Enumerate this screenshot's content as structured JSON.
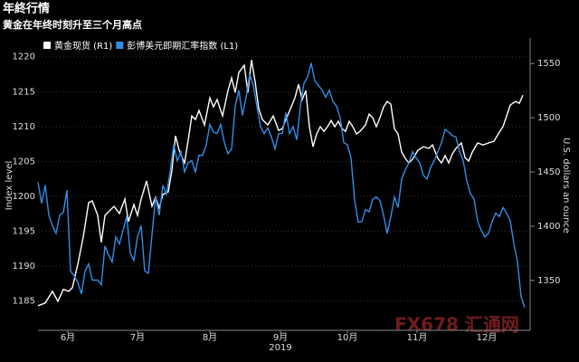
{
  "chart_data": {
    "type": "line",
    "title": "年終行情",
    "subtitle": "黄金在年终时刻升至三个月高点",
    "ylabel": "Index level",
    "y2label": "U.S. dollars an ounce",
    "year_label": "2019",
    "watermark": "FX678 汇通网",
    "xlim": [
      0,
      538
    ],
    "xticks": [
      {
        "value": 33,
        "label": "6月"
      },
      {
        "value": 110,
        "label": "7月"
      },
      {
        "value": 190,
        "label": "8月"
      },
      {
        "value": 268,
        "label": "9月"
      },
      {
        "value": 342,
        "label": "10月"
      },
      {
        "value": 419,
        "label": "11月"
      },
      {
        "value": 496,
        "label": "12月"
      }
    ],
    "ylim": [
      1180.8,
      1222.3
    ],
    "yticks": [
      1185,
      1190,
      1195,
      1200,
      1205,
      1210,
      1215,
      1220
    ],
    "y2lim": [
      1304,
      1571
    ],
    "y2ticks": [
      1350,
      1400,
      1450,
      1500,
      1550
    ],
    "grid": true,
    "legend": "top-left",
    "series": [
      {
        "name": "黄金现货 (R1)",
        "color": "#ffffff",
        "axis": "y2",
        "x": [
          0,
          8,
          16,
          22,
          28,
          34,
          38,
          44,
          50,
          56,
          60,
          66,
          70,
          74,
          78,
          84,
          90,
          96,
          100,
          106,
          110,
          114,
          120,
          126,
          130,
          134,
          138,
          144,
          148,
          152,
          156,
          162,
          166,
          170,
          174,
          178,
          184,
          190,
          194,
          198,
          204,
          210,
          214,
          218,
          222,
          228,
          232,
          236,
          240,
          244,
          248,
          254,
          260,
          266,
          270,
          274,
          280,
          284,
          288,
          292,
          296,
          300,
          304,
          308,
          312,
          316,
          320,
          324,
          328,
          332,
          336,
          340,
          344,
          348,
          352,
          356,
          362,
          366,
          370,
          374,
          378,
          382,
          386,
          390,
          394,
          398,
          402,
          406,
          410,
          414,
          420,
          426,
          432,
          436,
          442,
          446,
          450,
          454,
          458,
          462,
          468,
          472,
          476,
          480,
          486,
          492,
          498,
          504,
          510,
          514,
          518,
          522,
          528,
          532,
          536
        ],
        "values": [
          1326.7,
          1329.2,
          1340,
          1330.8,
          1341.7,
          1340,
          1343.3,
          1365,
          1390,
          1421.7,
          1423.3,
          1410,
          1385,
          1410,
          1413.3,
          1418.3,
          1411.7,
          1425,
          1404.2,
          1420,
          1410,
          1425,
          1441.7,
          1418.3,
          1426.7,
          1416.7,
          1429.2,
          1431.7,
          1451.7,
          1483.3,
          1470,
          1458.3,
          1479.2,
          1501.7,
          1498.3,
          1506.7,
          1493.3,
          1518.3,
          1510,
          1516.7,
          1501.7,
          1525,
          1536.7,
          1523.3,
          1541.7,
          1548.3,
          1523.3,
          1553.3,
          1533.3,
          1508.3,
          1498.3,
          1493.3,
          1501.7,
          1488.3,
          1490,
          1498.3,
          1510,
          1518.3,
          1530.8,
          1516.7,
          1525,
          1491.7,
          1473.3,
          1485,
          1491.7,
          1487.5,
          1491.7,
          1497.5,
          1491.7,
          1496.7,
          1490,
          1487.5,
          1496.7,
          1491.7,
          1485,
          1487.5,
          1493.3,
          1503.3,
          1500,
          1491.7,
          1500,
          1510,
          1515,
          1512.5,
          1490,
          1485,
          1468.3,
          1462.5,
          1458.3,
          1461.7,
          1470,
          1473.3,
          1471.7,
          1475,
          1462.5,
          1458.3,
          1465,
          1458.3,
          1466.7,
          1471.7,
          1476.7,
          1463.3,
          1460,
          1468.3,
          1476.7,
          1475,
          1476.7,
          1478.3,
          1486.7,
          1491.7,
          1501.7,
          1511.7,
          1515,
          1513.3,
          1520.8
        ]
      },
      {
        "name": "彭博美元即期汇率指数 (L1)",
        "color": "#2f8fe8",
        "axis": "y",
        "x": [
          0,
          4,
          8,
          12,
          16,
          20,
          24,
          28,
          32,
          36,
          40,
          44,
          48,
          52,
          56,
          60,
          66,
          70,
          74,
          78,
          82,
          86,
          90,
          94,
          98,
          102,
          106,
          110,
          114,
          118,
          122,
          126,
          130,
          134,
          138,
          142,
          146,
          150,
          154,
          158,
          162,
          166,
          170,
          174,
          178,
          182,
          186,
          190,
          194,
          198,
          202,
          206,
          210,
          214,
          218,
          222,
          226,
          230,
          234,
          238,
          242,
          246,
          250,
          254,
          258,
          262,
          266,
          270,
          274,
          278,
          282,
          286,
          290,
          294,
          298,
          302,
          306,
          310,
          314,
          318,
          322,
          326,
          330,
          334,
          338,
          342,
          346,
          350,
          354,
          358,
          362,
          366,
          370,
          374,
          378,
          382,
          386,
          390,
          394,
          398,
          402,
          406,
          410,
          414,
          418,
          422,
          426,
          430,
          434,
          438,
          442,
          446,
          450,
          454,
          458,
          462,
          466,
          470,
          474,
          478,
          482,
          486,
          490,
          494,
          498,
          502,
          506,
          510,
          514,
          518,
          522,
          526,
          530,
          534,
          538
        ],
        "values": [
          1202.0,
          1199.0,
          1201.6,
          1197.3,
          1195.8,
          1194.7,
          1197.3,
          1197.7,
          1200.9,
          1189.3,
          1188.6,
          1187.7,
          1186.0,
          1189.3,
          1190.3,
          1188.0,
          1188.0,
          1187.3,
          1192.9,
          1191.6,
          1190.6,
          1194.2,
          1193.2,
          1195.1,
          1197.1,
          1191.9,
          1190.8,
          1194.2,
          1195.8,
          1189.3,
          1189.0,
          1194.5,
          1199.9,
          1197.3,
          1201.6,
          1200.3,
          1203.5,
          1207.4,
          1205.1,
          1206.4,
          1203.5,
          1204.8,
          1205.1,
          1203.5,
          1205.9,
          1205.9,
          1207.4,
          1210.3,
          1209.2,
          1209.0,
          1210.3,
          1207.7,
          1206.1,
          1206.8,
          1212.9,
          1215.2,
          1211.6,
          1214.2,
          1217.5,
          1215.9,
          1212.9,
          1210.0,
          1209.0,
          1209.8,
          1208.5,
          1206.8,
          1209.0,
          1209.0,
          1212.0,
          1209.0,
          1210.0,
          1208.1,
          1212.9,
          1216.2,
          1217.1,
          1219.1,
          1216.5,
          1215.9,
          1215.2,
          1214.2,
          1215.2,
          1213.6,
          1212.9,
          1211.3,
          1207.7,
          1207.4,
          1205.5,
          1199.4,
          1196.3,
          1196.4,
          1198.1,
          1197.8,
          1199.6,
          1199.9,
          1199.4,
          1197.3,
          1194.7,
          1197.1,
          1199.9,
          1198.4,
          1202.5,
          1203.8,
          1204.8,
          1206.4,
          1205.5,
          1204.8,
          1203.0,
          1202.5,
          1204.1,
          1205.1,
          1206.4,
          1207.7,
          1209.6,
          1209.2,
          1208.7,
          1208.5,
          1206.4,
          1205.1,
          1202.2,
          1200.4,
          1199.6,
          1196.4,
          1195.1,
          1194.2,
          1194.7,
          1196.4,
          1197.6,
          1197.1,
          1198.4,
          1197.6,
          1196.5,
          1193.2,
          1190.6,
          1185.6,
          1184.1
        ]
      }
    ]
  }
}
